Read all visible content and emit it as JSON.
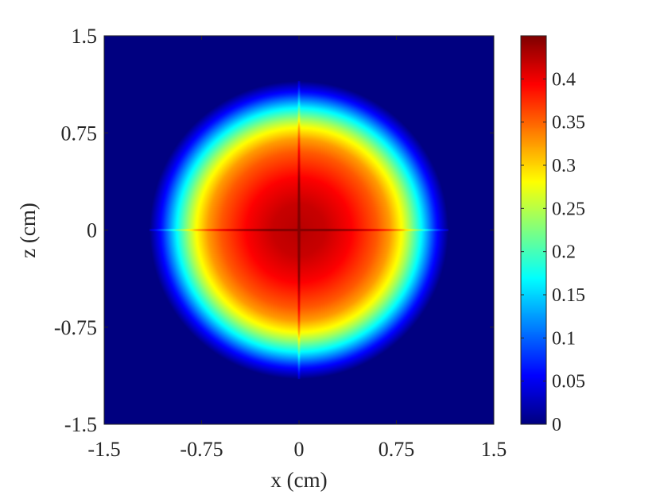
{
  "chart_data": {
    "type": "heatmap",
    "title": "",
    "xlabel": "x (cm)",
    "ylabel": "z (cm)",
    "xlim": [
      -1.5,
      1.5
    ],
    "ylim": [
      -1.5,
      1.5
    ],
    "x_ticks": [
      -1.5,
      -0.75,
      0,
      0.75,
      1.5
    ],
    "x_tick_labels": [
      "-1.5",
      "-0.75",
      "0",
      "0.75",
      "1.5"
    ],
    "y_ticks": [
      1.5,
      0.75,
      0,
      -0.75,
      -1.5
    ],
    "y_tick_labels": [
      "1.5",
      "0.75",
      "0",
      "-0.75",
      "-1.5"
    ],
    "colormap": "jet",
    "clim": [
      0,
      0.45
    ],
    "colorbar": {
      "ticks": [
        0,
        0.05,
        0.1,
        0.15,
        0.2,
        0.25,
        0.3,
        0.35,
        0.4
      ],
      "tick_labels": [
        "0",
        "0.05",
        "0.1",
        "0.15",
        "0.2",
        "0.25",
        "0.3",
        "0.35",
        "0.4"
      ],
      "location": "right"
    },
    "field": {
      "shape": "radially symmetric disc with cross-shaped ridges along x=0 and z=0",
      "peak_value": 0.45,
      "peak_location": [
        0,
        0
      ],
      "plateau_radius_cm": 0.75,
      "falloff_to_zero_radius_cm": 1.15,
      "ridge_extent_cm": 1.15
    },
    "radial_profile": {
      "r": [
        0,
        0.2,
        0.4,
        0.6,
        0.7,
        0.8,
        0.85,
        0.9,
        0.95,
        1.0,
        1.05,
        1.1,
        1.15,
        1.5
      ],
      "value": [
        0.425,
        0.418,
        0.395,
        0.355,
        0.325,
        0.275,
        0.24,
        0.2,
        0.16,
        0.115,
        0.07,
        0.035,
        0.0,
        0.0
      ]
    },
    "grid": false
  }
}
